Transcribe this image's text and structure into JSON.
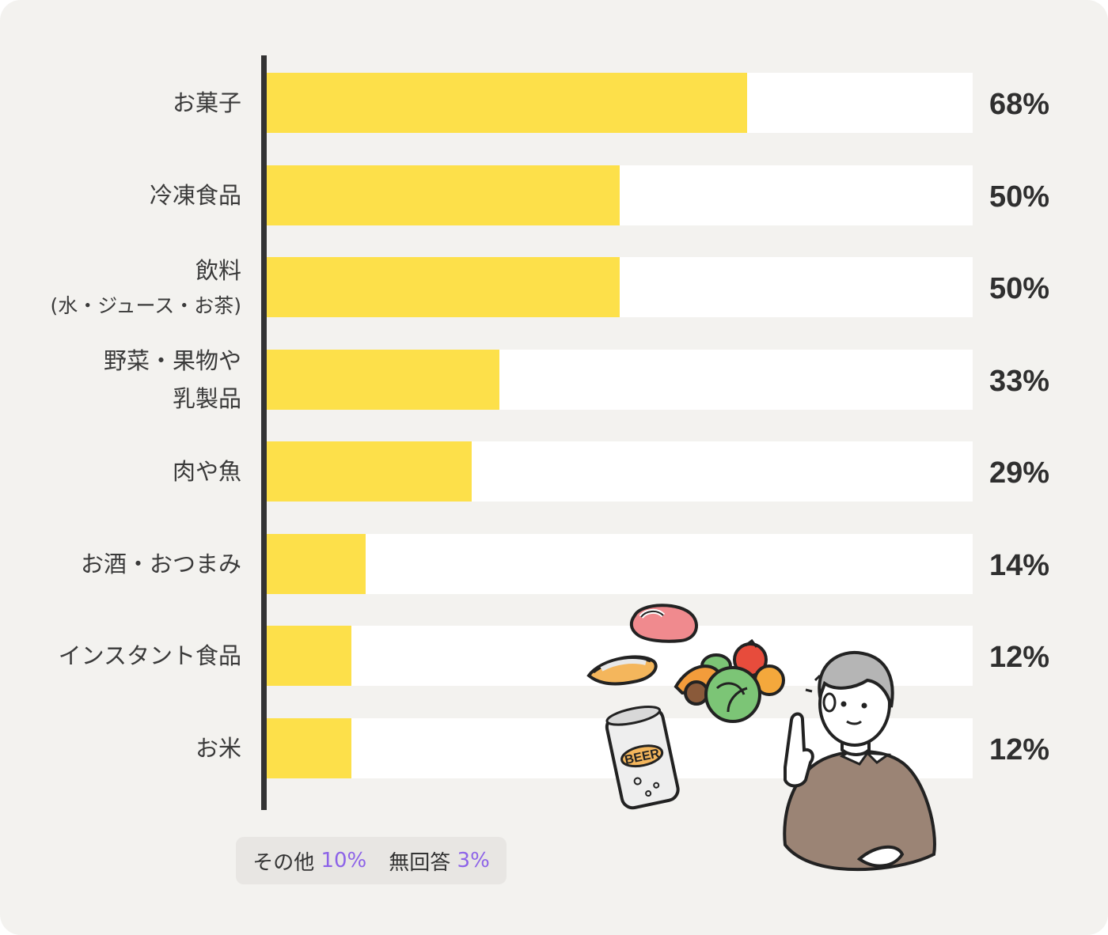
{
  "chart_data": {
    "type": "bar",
    "orientation": "horizontal",
    "categories": [
      [
        "お菓子"
      ],
      [
        "冷凍食品"
      ],
      [
        "飲料",
        "(水・ジュース・お茶)"
      ],
      [
        "野菜・果物や",
        "乳製品"
      ],
      [
        "肉や魚"
      ],
      [
        "お酒・おつまみ"
      ],
      [
        "インスタント食品"
      ],
      [
        "お米"
      ]
    ],
    "values": [
      68,
      50,
      50,
      33,
      29,
      14,
      12,
      12
    ],
    "value_labels": [
      "68%",
      "50%",
      "50%",
      "33%",
      "29%",
      "14%",
      "12%",
      "12%"
    ],
    "xlim": [
      0,
      100
    ],
    "grid": false,
    "legend": "none"
  },
  "note": {
    "other_label": "その他",
    "other_value": "10%",
    "noanswer_label": "無回答",
    "noanswer_value": "3%"
  },
  "colors": {
    "bar_fill": "#fde04a",
    "bar_track": "#ffffff",
    "background": "#f3f2ef",
    "axis": "#333333",
    "note_value": "#8d63e8"
  },
  "illustration": {
    "icons": [
      "meat-icon",
      "fish-icon",
      "vegetables-icon",
      "beer-can-icon",
      "elderly-man-pointing-icon"
    ],
    "can_text": "BEER"
  }
}
